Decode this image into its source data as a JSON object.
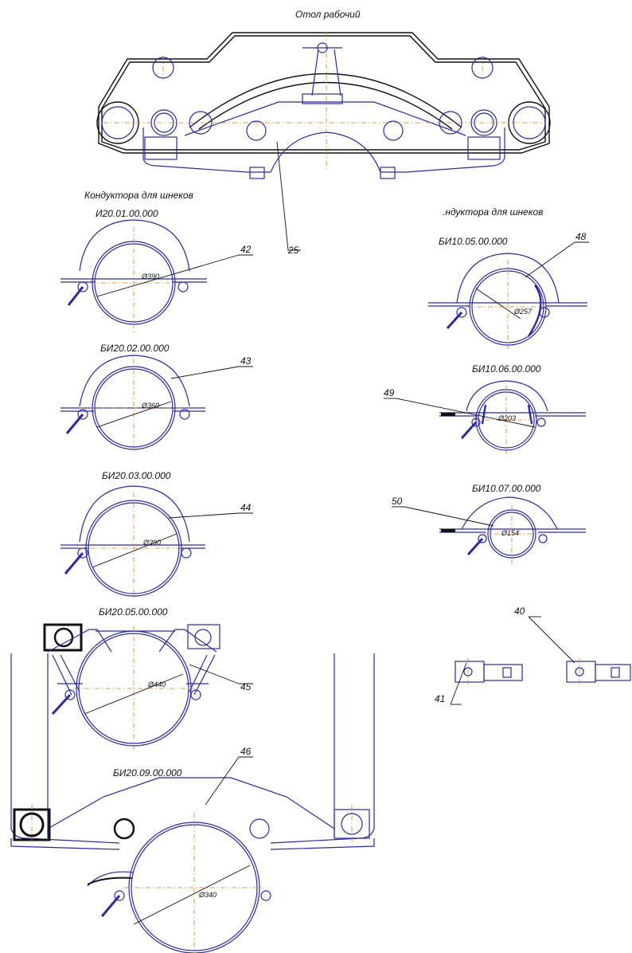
{
  "title_top": "Отол рабочий",
  "left_heading": "Кондуктора для шнеков",
  "right_heading": ".ндуктора для шнеков",
  "assemblies": [
    {
      "code": "И20.01.00.000",
      "dim": "Ø390",
      "pos": "42"
    },
    {
      "code": "БИ20.02.00.000",
      "dim": "Ø360",
      "pos": "43"
    },
    {
      "code": "БИ20.03.00.000",
      "dim": "Ø390",
      "pos": "44"
    },
    {
      "code": "БИ20.05.00.000",
      "dim": "Ø440",
      "pos": "45"
    },
    {
      "code": "БИ20.09.00.000",
      "dim": "Ø340",
      "pos": "46"
    },
    {
      "code": "БИ10.05.00.000",
      "dim": "Ø257",
      "pos": "48"
    },
    {
      "code": "БИ10.06.00.000",
      "dim": "Ø203",
      "pos": "49"
    },
    {
      "code": "БИ10.07.00.000",
      "dim": "Ø154",
      "pos": "50"
    }
  ],
  "pos_table": "25",
  "pos_pin_a": "41",
  "pos_pin_b": "40"
}
